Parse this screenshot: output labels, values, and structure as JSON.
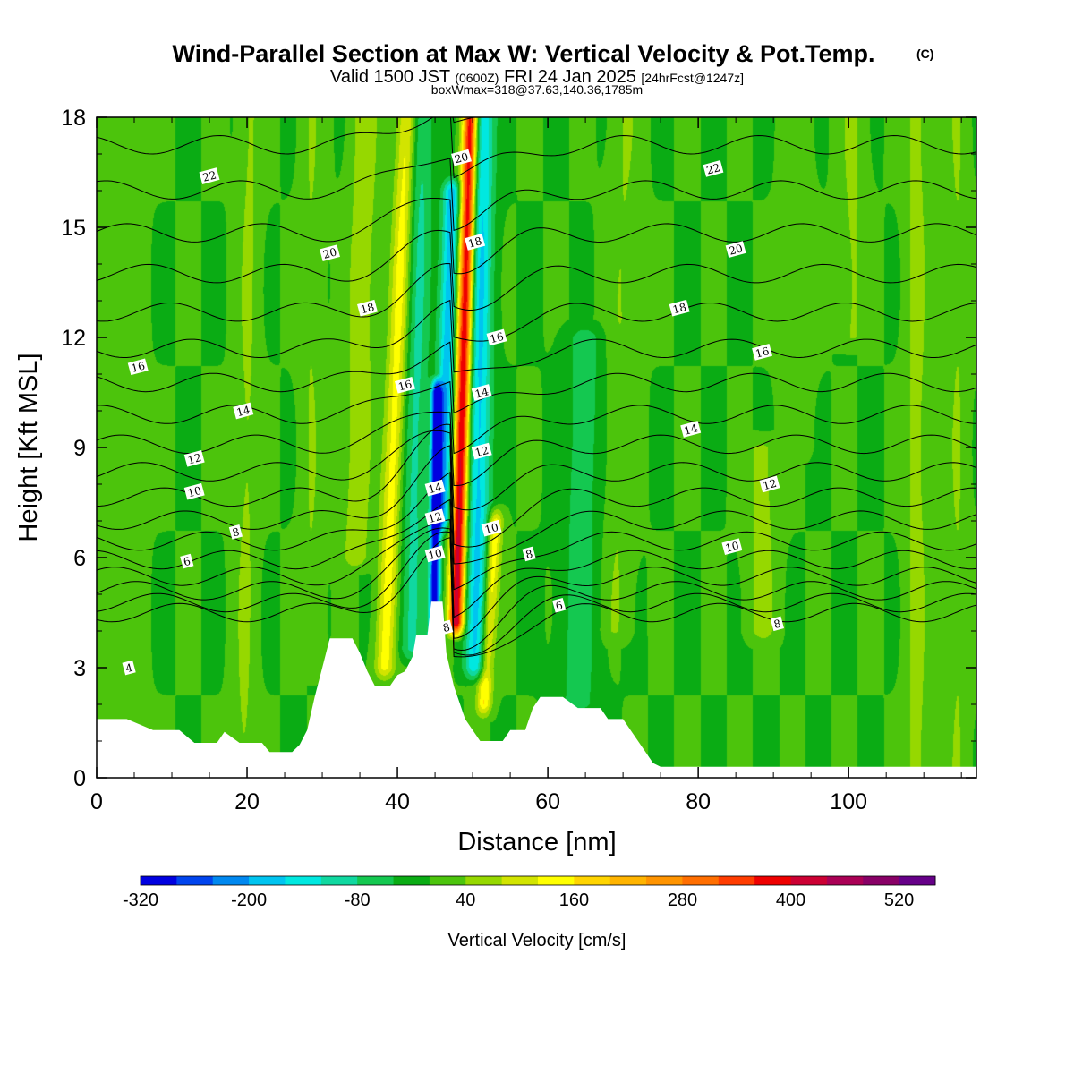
{
  "chart_data": {
    "type": "heatmap",
    "title": "Wind-Parallel Section at Max W: Vertical Velocity & Pot.Temp.",
    "title_mark": "(C)",
    "subtitle": {
      "valid_prefix": "Valid 1500 JST",
      "utc": "(0600Z)",
      "date": "FRI 24 Jan 2025",
      "forecast": "[24hrFcst@1247z]"
    },
    "note": "boxWmax=318@37.63,140.36,1785m",
    "xlabel": "Distance [nm]",
    "ylabel": "Height [Kft MSL]",
    "xlim": [
      0,
      117
    ],
    "ylim": [
      0,
      18
    ],
    "xticks": [
      0,
      20,
      40,
      60,
      80,
      100
    ],
    "yticks": [
      0,
      3,
      6,
      9,
      12,
      15,
      18
    ],
    "colorbar": {
      "label": "Vertical Velocity [cm/s]",
      "tick_labels": [
        "-320",
        "-200",
        "-80",
        "40",
        "160",
        "280",
        "400",
        "520"
      ],
      "tick_values": [
        -320,
        -200,
        -80,
        40,
        160,
        280,
        400,
        520
      ],
      "bins": [
        -320,
        -280,
        -240,
        -200,
        -160,
        -120,
        -80,
        -40,
        0,
        40,
        80,
        120,
        160,
        200,
        240,
        280,
        320,
        360,
        400,
        440,
        480,
        520,
        560
      ],
      "colors": [
        "#0000e0",
        "#0044ee",
        "#0088f0",
        "#00c4f0",
        "#00e8e0",
        "#10d8a0",
        "#14c850",
        "#0aac14",
        "#4cc40c",
        "#96d800",
        "#d2e400",
        "#ffff00",
        "#ffd400",
        "#ffb400",
        "#ff9400",
        "#ff6e00",
        "#ff3c00",
        "#ee0000",
        "#cc0033",
        "#aa0055",
        "#880066",
        "#660088"
      ]
    },
    "terrain_kft": [
      [
        0,
        1.6
      ],
      [
        4,
        1.6
      ],
      [
        7.5,
        1.3
      ],
      [
        11,
        1.3
      ],
      [
        13,
        0.95
      ],
      [
        16,
        0.95
      ],
      [
        17,
        1.25
      ],
      [
        19,
        0.95
      ],
      [
        22,
        0.95
      ],
      [
        23,
        0.7
      ],
      [
        26,
        0.7
      ],
      [
        27,
        0.9
      ],
      [
        28,
        1.3
      ],
      [
        29,
        2.2
      ],
      [
        30,
        3.0
      ],
      [
        31,
        3.8
      ],
      [
        34,
        3.8
      ],
      [
        35,
        3.4
      ],
      [
        36,
        2.9
      ],
      [
        37,
        2.5
      ],
      [
        39,
        2.5
      ],
      [
        40,
        2.8
      ],
      [
        41,
        2.9
      ],
      [
        42,
        3.3
      ],
      [
        42.5,
        3.9
      ],
      [
        44,
        3.9
      ],
      [
        44.5,
        4.8
      ],
      [
        46,
        4.8
      ],
      [
        46.5,
        3.4
      ],
      [
        47.5,
        2.5
      ],
      [
        48,
        2.2
      ],
      [
        49,
        1.6
      ],
      [
        50,
        1.3
      ],
      [
        51,
        1.0
      ],
      [
        54,
        1.0
      ],
      [
        55,
        1.3
      ],
      [
        57,
        1.3
      ],
      [
        58,
        1.9
      ],
      [
        59,
        2.2
      ],
      [
        62,
        2.2
      ],
      [
        64,
        1.9
      ],
      [
        67,
        1.9
      ],
      [
        68,
        1.6
      ],
      [
        70,
        1.6
      ],
      [
        71,
        1.3
      ],
      [
        72,
        1.0
      ],
      [
        73,
        0.7
      ],
      [
        74,
        0.4
      ],
      [
        75,
        0.3
      ],
      [
        117,
        0.3
      ]
    ],
    "w_features": [
      {
        "x": 47.8,
        "zb": 4.2,
        "zt": 18,
        "amp": 430,
        "width": 1.0,
        "lean": 0.14
      },
      {
        "x": 44.9,
        "zb": 3.9,
        "zt": 10.5,
        "amp": -330,
        "width": 0.7,
        "lean": 0.05
      },
      {
        "x": 46.0,
        "zb": 7.0,
        "zt": 16,
        "amp": -190,
        "width": 1.2,
        "lean": 0.14
      },
      {
        "x": 50.5,
        "zb": 3.0,
        "zt": 18,
        "amp": -170,
        "width": 1.6,
        "lean": 0.05
      },
      {
        "x": 51.5,
        "zb": 2.0,
        "zt": 7.0,
        "amp": 160,
        "width": 1.0,
        "lean": 0.3
      },
      {
        "x": 38.3,
        "zb": 3.0,
        "zt": 18,
        "amp": 140,
        "width": 1.3,
        "lean": 0.2
      },
      {
        "x": 41.8,
        "zb": 3.5,
        "zt": 18,
        "amp": -90,
        "width": 1.6,
        "lean": 0.1
      },
      {
        "x": 34.5,
        "zb": 6.0,
        "zt": 18,
        "amp": 70,
        "width": 1.8,
        "lean": 0.1
      },
      {
        "x": 19.5,
        "zb": 0,
        "zt": 18,
        "amp": 45,
        "width": 1.5,
        "lean": 0.05
      },
      {
        "x": 28.5,
        "zb": 3.0,
        "zt": 18,
        "amp": 40,
        "width": 1.5,
        "lean": 0.0
      },
      {
        "x": 3.0,
        "zb": 0,
        "zt": 18,
        "amp": 35,
        "width": 2.5,
        "lean": 0.0
      },
      {
        "x": 64.0,
        "zb": 2.0,
        "zt": 12,
        "amp": -60,
        "width": 2.5,
        "lean": 0.1
      },
      {
        "x": 69.0,
        "zb": 4.0,
        "zt": 18,
        "amp": 40,
        "width": 2.0,
        "lean": 0.1
      },
      {
        "x": 88.5,
        "zb": 4.0,
        "zt": 9,
        "amp": 55,
        "width": 2.0,
        "lean": 0.0
      },
      {
        "x": 109.0,
        "zb": 0,
        "zt": 18,
        "amp": 55,
        "width": 1.5,
        "lean": 0.0
      },
      {
        "x": 100.5,
        "zb": 12,
        "zt": 18,
        "amp": 45,
        "width": 1.8,
        "lean": 0.0
      },
      {
        "x": 93.0,
        "zb": 9,
        "zt": 18,
        "amp": 30,
        "width": 2.0,
        "lean": 0.0
      },
      {
        "x": 114.5,
        "zb": 0,
        "zt": 18,
        "amp": 40,
        "width": 1.5,
        "lean": 0.0
      }
    ],
    "theta_levels": [
      4,
      5,
      6,
      7,
      8,
      9,
      10,
      11,
      12,
      13,
      14,
      15,
      16,
      17,
      18,
      19,
      20,
      21,
      22,
      23
    ],
    "contour_labels": [
      {
        "text": "22",
        "x": 15,
        "z": 16.4
      },
      {
        "text": "20",
        "x": 31,
        "z": 14.3
      },
      {
        "text": "18",
        "x": 36,
        "z": 12.8
      },
      {
        "text": "16",
        "x": 5.5,
        "z": 11.2
      },
      {
        "text": "14",
        "x": 19.5,
        "z": 10.0
      },
      {
        "text": "12",
        "x": 13,
        "z": 8.7
      },
      {
        "text": "10",
        "x": 13,
        "z": 7.8
      },
      {
        "text": "8",
        "x": 18.5,
        "z": 6.7
      },
      {
        "text": "6",
        "x": 12,
        "z": 5.9
      },
      {
        "text": "4",
        "x": 4.3,
        "z": 3.0
      },
      {
        "text": "16",
        "x": 41,
        "z": 10.7
      },
      {
        "text": "20",
        "x": 48.5,
        "z": 16.9
      },
      {
        "text": "18",
        "x": 50.3,
        "z": 14.6
      },
      {
        "text": "16",
        "x": 53.2,
        "z": 12.0
      },
      {
        "text": "14",
        "x": 51.2,
        "z": 10.5
      },
      {
        "text": "12",
        "x": 51.2,
        "z": 8.9
      },
      {
        "text": "14",
        "x": 45,
        "z": 7.9
      },
      {
        "text": "12",
        "x": 45,
        "z": 7.1
      },
      {
        "text": "10",
        "x": 45,
        "z": 6.1
      },
      {
        "text": "10",
        "x": 52.5,
        "z": 6.8
      },
      {
        "text": "8",
        "x": 46.5,
        "z": 4.1
      },
      {
        "text": "8",
        "x": 57.5,
        "z": 6.1
      },
      {
        "text": "6",
        "x": 61.5,
        "z": 4.7
      },
      {
        "text": "22",
        "x": 82,
        "z": 16.6
      },
      {
        "text": "20",
        "x": 85,
        "z": 14.4
      },
      {
        "text": "18",
        "x": 77.5,
        "z": 12.8
      },
      {
        "text": "16",
        "x": 88.5,
        "z": 11.6
      },
      {
        "text": "14",
        "x": 79,
        "z": 9.5
      },
      {
        "text": "12",
        "x": 89.5,
        "z": 8.0
      },
      {
        "text": "10",
        "x": 84.5,
        "z": 6.3
      },
      {
        "text": "8",
        "x": 90.5,
        "z": 4.2
      }
    ]
  }
}
